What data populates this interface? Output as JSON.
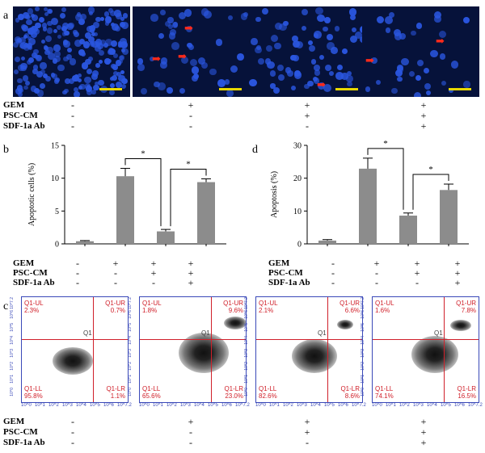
{
  "panel_labels": {
    "a": "a",
    "b": "b",
    "c": "c",
    "d": "d"
  },
  "conditions": {
    "rows": [
      "GEM",
      "PSC-CM",
      "SDF-1a Ab"
    ],
    "groups": [
      [
        "-",
        "-",
        "-"
      ],
      [
        "+",
        "-",
        "-"
      ],
      [
        "+",
        "+",
        "-"
      ],
      [
        "+",
        "+",
        "+"
      ]
    ]
  },
  "colors": {
    "bar": "#8c8c8c",
    "nucleus": "#2a56e0",
    "arrow": "#ff2a1a",
    "quadrant": "#d0202a",
    "frame": "#3a49b8"
  },
  "flow": {
    "panels": [
      {
        "UL": "Q1-UL\n2.3%",
        "UR": "Q1-UR\n0.7%",
        "LL": "Q1-LL\n95.8%",
        "LR": "Q1-LR\n1.1%",
        "gate": "Q1"
      },
      {
        "UL": "Q1-UL\n1.8%",
        "UR": "Q1-UR\n9.6%",
        "LL": "Q1-LL\n65.6%",
        "LR": "Q1-LR\n23.0%",
        "gate": "Q1"
      },
      {
        "UL": "Q1-UL\n2.1%",
        "UR": "Q1-UR\n6.6%",
        "LL": "Q1-LL\n82.6%",
        "LR": "Q1-LR\n8.6%",
        "gate": "Q1"
      },
      {
        "UL": "Q1-UL\n1.6%",
        "UR": "Q1-UR\n7.8%",
        "LL": "Q1-LL\n74.1%",
        "LR": "Q1-LR\n16.5%",
        "gate": "Q1"
      }
    ],
    "x_ticks": [
      "10^0",
      "10^1",
      "10^2",
      "10^3",
      "10^4",
      "10^5",
      "10^6",
      "10^7.2"
    ],
    "y_ticks": [
      "10^7.2",
      "10^6",
      "10^5",
      "10^4",
      "10^3",
      "10^2",
      "10^1",
      "10^0"
    ]
  },
  "chart_data": [
    {
      "type": "bar",
      "panel": "b",
      "title": "",
      "xlabel": "",
      "ylabel": "Apoptotic cells (%)",
      "ylim": [
        0,
        15
      ],
      "yticks": [
        0,
        5,
        10,
        15
      ],
      "categories": [
        "1",
        "2",
        "3",
        "4"
      ],
      "values": [
        0.4,
        10.3,
        1.9,
        9.4
      ],
      "errors": [
        0.1,
        1.2,
        0.3,
        0.5
      ],
      "significance": [
        {
          "from": 1,
          "to": 2,
          "label": "*"
        },
        {
          "from": 2,
          "to": 3,
          "label": "*"
        }
      ]
    },
    {
      "type": "bar",
      "panel": "d",
      "title": "",
      "xlabel": "",
      "ylabel": "Apoptosis (%)",
      "ylim": [
        0,
        30
      ],
      "yticks": [
        0,
        10,
        20,
        30
      ],
      "categories": [
        "1",
        "2",
        "3",
        "4"
      ],
      "values": [
        1.0,
        22.9,
        8.6,
        16.4
      ],
      "errors": [
        0.3,
        3.2,
        0.8,
        1.8
      ],
      "significance": [
        {
          "from": 1,
          "to": 2,
          "label": "*"
        },
        {
          "from": 2,
          "to": 3,
          "label": "*"
        }
      ]
    }
  ]
}
